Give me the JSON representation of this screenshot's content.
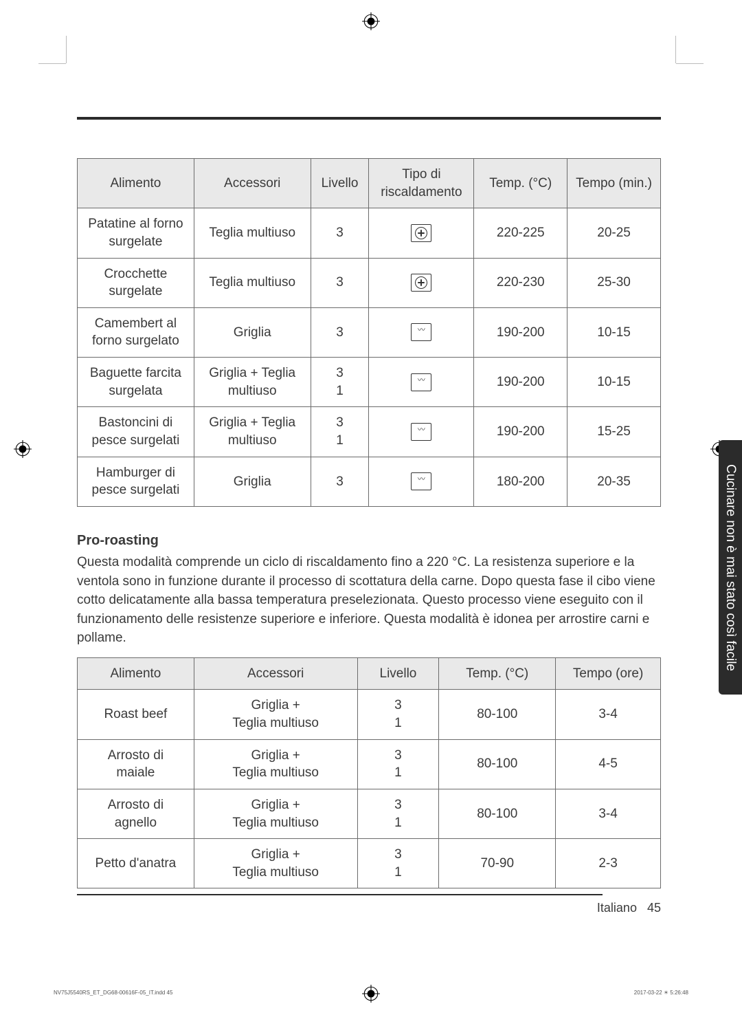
{
  "table1": {
    "headers": [
      "Alimento",
      "Accessori",
      "Livello",
      "Tipo di\nriscaldamento",
      "Temp. (°C)",
      "Tempo (min.)"
    ],
    "rows": [
      {
        "alimento": "Patatine al forno\nsurgelate",
        "accessori": "Teglia multiuso",
        "livello": "3",
        "heat": "fan",
        "temp": "220-225",
        "tempo": "20-25"
      },
      {
        "alimento": "Crocchette\nsurgelate",
        "accessori": "Teglia multiuso",
        "livello": "3",
        "heat": "fan",
        "temp": "220-230",
        "tempo": "25-30"
      },
      {
        "alimento": "Camembert al\nforno surgelato",
        "accessori": "Griglia",
        "livello": "3",
        "heat": "top",
        "temp": "190-200",
        "tempo": "10-15"
      },
      {
        "alimento": "Baguette farcita\nsurgelata",
        "accessori": "Griglia + Teglia\nmultiuso",
        "livello": "3\n1",
        "heat": "top",
        "temp": "190-200",
        "tempo": "10-15"
      },
      {
        "alimento": "Bastoncini di\npesce surgelati",
        "accessori": "Griglia + Teglia\nmultiuso",
        "livello": "3\n1",
        "heat": "top",
        "temp": "190-200",
        "tempo": "15-25"
      },
      {
        "alimento": "Hamburger di\npesce surgelati",
        "accessori": "Griglia",
        "livello": "3",
        "heat": "top",
        "temp": "180-200",
        "tempo": "20-35"
      }
    ]
  },
  "section": {
    "title": "Pro-roasting",
    "body": "Questa modalità comprende un ciclo di riscaldamento fino a 220 °C. La resistenza superiore e la ventola sono in funzione durante il processo di scottatura della carne. Dopo questa fase il cibo viene cotto delicatamente alla bassa temperatura preselezionata. Questo processo viene eseguito con il funzionamento delle resistenze superiore e inferiore. Questa modalità è idonea per arrostire carni e pollame."
  },
  "table2": {
    "headers": [
      "Alimento",
      "Accessori",
      "Livello",
      "Temp. (°C)",
      "Tempo (ore)"
    ],
    "rows": [
      {
        "alimento": "Roast beef",
        "accessori": "Griglia +\nTeglia multiuso",
        "livello": "3\n1",
        "temp": "80-100",
        "tempo": "3-4"
      },
      {
        "alimento": "Arrosto di\nmaiale",
        "accessori": "Griglia +\nTeglia multiuso",
        "livello": "3\n1",
        "temp": "80-100",
        "tempo": "4-5"
      },
      {
        "alimento": "Arrosto di\nagnello",
        "accessori": "Griglia +\nTeglia multiuso",
        "livello": "3\n1",
        "temp": "80-100",
        "tempo": "3-4"
      },
      {
        "alimento": "Petto d'anatra",
        "accessori": "Griglia +\nTeglia multiuso",
        "livello": "3\n1",
        "temp": "70-90",
        "tempo": "2-3"
      }
    ]
  },
  "sideTab": "Cucinare non è mai stato così facile",
  "footer": {
    "lang": "Italiano",
    "page": "45"
  },
  "micro": {
    "left": "NV75J5540RS_ET_DG68-00616F-05_IT.indd   45",
    "right": "2017-03-22   ☀ 5:26:48"
  },
  "col_widths": {
    "t1": [
      "20%",
      "20%",
      "10%",
      "18%",
      "16%",
      "16%"
    ],
    "t2": [
      "20%",
      "28%",
      "14%",
      "20%",
      "18%"
    ]
  }
}
